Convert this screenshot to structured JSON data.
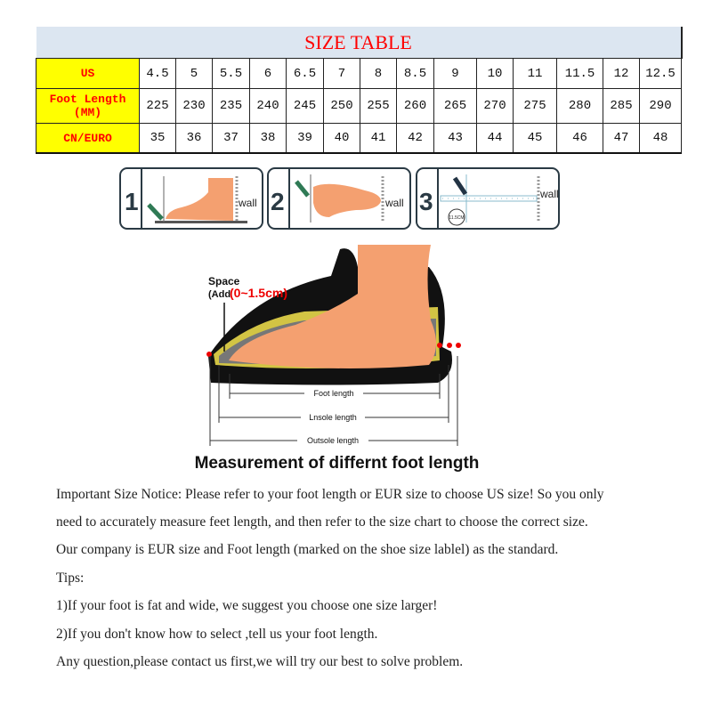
{
  "table": {
    "title": "SIZE TABLE",
    "rows": [
      {
        "label": "US",
        "values": [
          "4.5",
          "5",
          "5.5",
          "6",
          "6.5",
          "7",
          "8",
          "8.5",
          "9",
          "10",
          "11",
          "11.5",
          "12",
          "12.5"
        ]
      },
      {
        "label": "Foot Length",
        "sublabel": "(MM)",
        "values": [
          "225",
          "230",
          "235",
          "240",
          "245",
          "250",
          "255",
          "260",
          "265",
          "270",
          "275",
          "280",
          "285",
          "290"
        ]
      },
      {
        "label": "CN/EURO",
        "values": [
          "35",
          "36",
          "37",
          "38",
          "39",
          "40",
          "41",
          "42",
          "43",
          "44",
          "45",
          "46",
          "47",
          "48"
        ]
      }
    ]
  },
  "steps": [
    {
      "number": "1",
      "wall": "wall"
    },
    {
      "number": "2",
      "wall": "wall"
    },
    {
      "number": "3",
      "wall": "wall",
      "badge": "11.5CM"
    }
  ],
  "diagram": {
    "space_label": "Space",
    "add_label": "(Add",
    "add_range": "(0~1.5cm)",
    "foot_length": "Foot length",
    "insole_length": "Lnsole length",
    "outsole_length": "Outsole length",
    "title": "Measurement of differnt foot length"
  },
  "notice": [
    "Important Size Notice: Please refer to your foot length or EUR size to choose US size! So you only",
    "need to accurately measure feet length, and then refer to the size chart to choose the correct size.",
    "Our company is EUR size and Foot length (marked on the shoe size lablel) as the standard.",
    "Tips:",
    "1)If your foot is fat and wide, we suggest you choose one size larger!",
    "2)If you don't know how to select ,tell us your foot length.",
    "Any question,please contact us first,we will try our best to solve problem."
  ],
  "colors": {
    "title_red": "#ff0000",
    "header_yellow": "#ffff00",
    "title_bg": "#dce6f1",
    "foot": "#f4a070"
  }
}
